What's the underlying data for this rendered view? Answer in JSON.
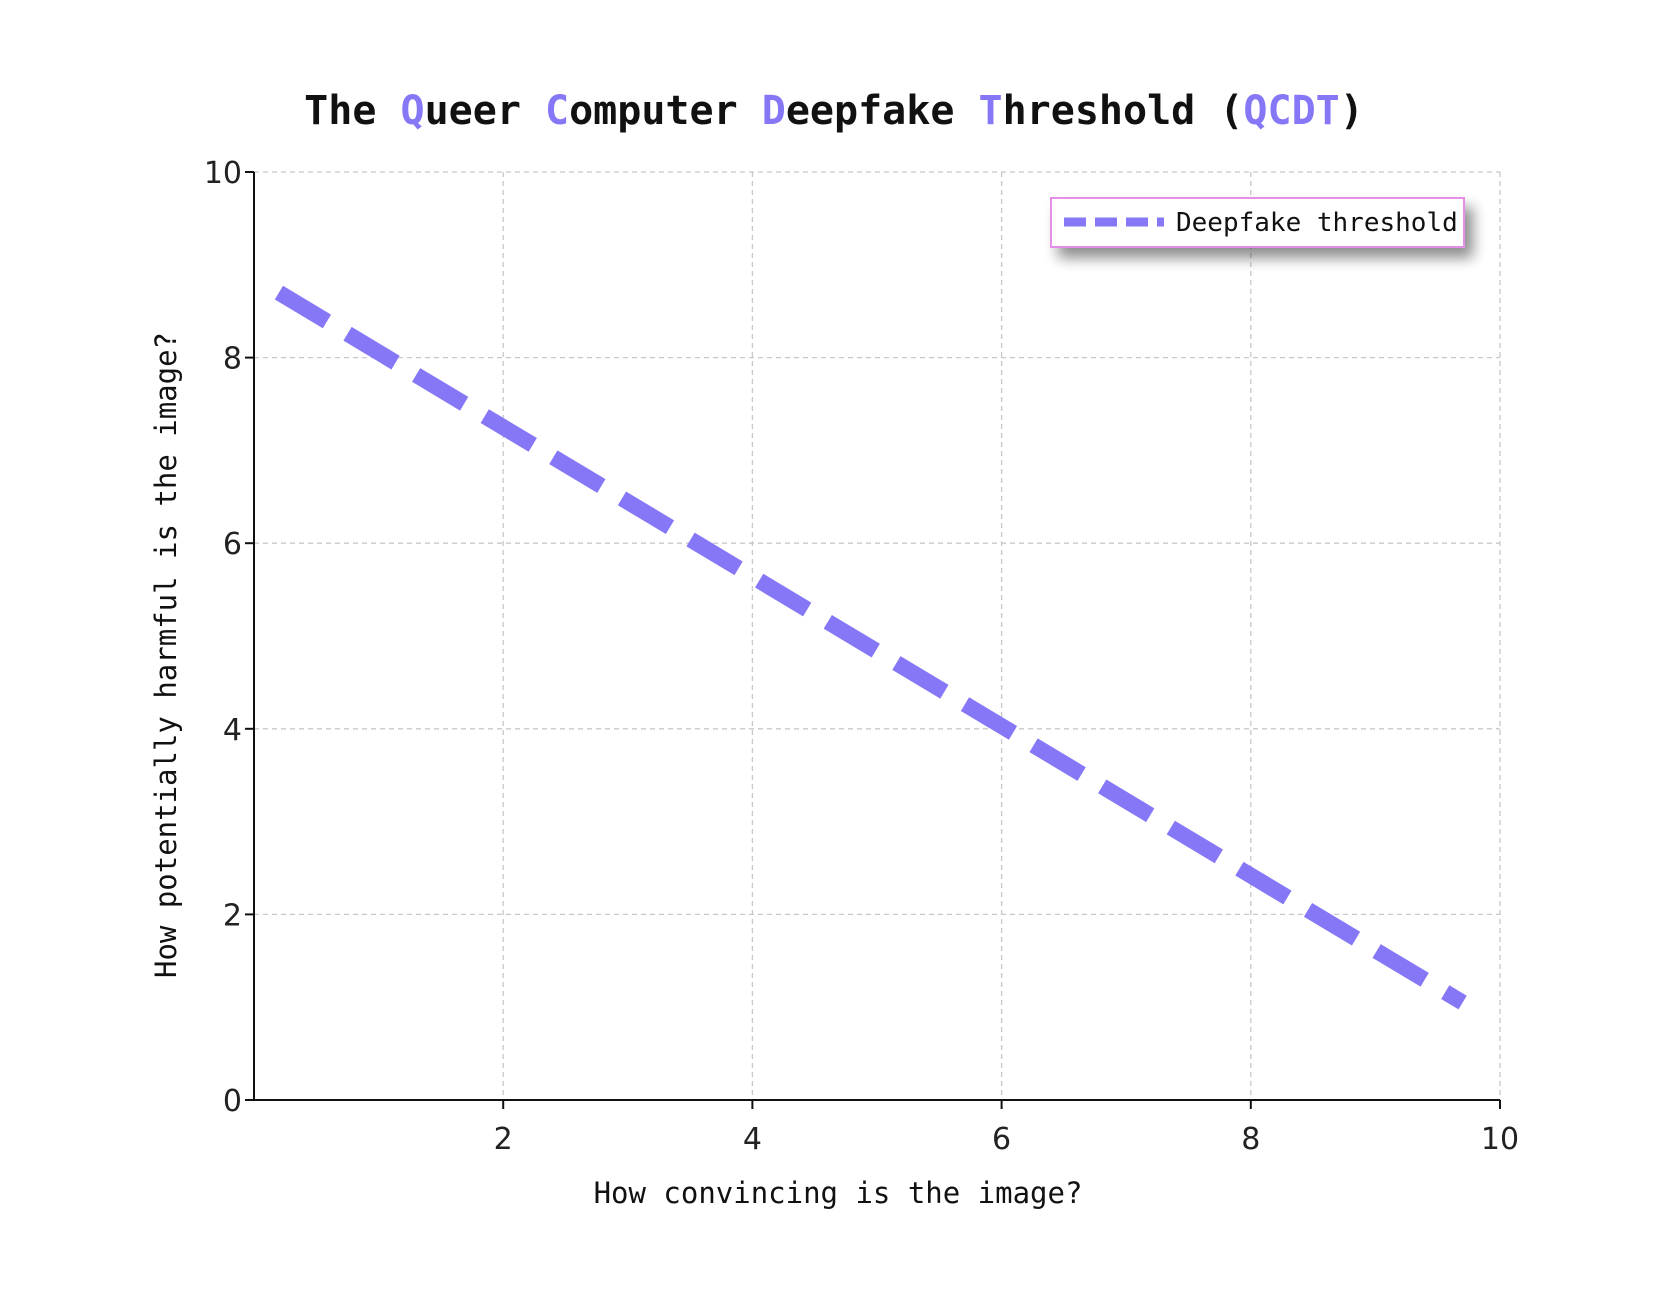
{
  "chart_data": {
    "type": "line",
    "title_segments": [
      {
        "text": "The ",
        "accent": false
      },
      {
        "text": "Q",
        "accent": true
      },
      {
        "text": "ueer ",
        "accent": false
      },
      {
        "text": "C",
        "accent": true
      },
      {
        "text": "omputer ",
        "accent": false
      },
      {
        "text": "D",
        "accent": true
      },
      {
        "text": "eepfake ",
        "accent": false
      },
      {
        "text": "T",
        "accent": true
      },
      {
        "text": "hreshold (",
        "accent": false
      },
      {
        "text": "QCDT",
        "accent": true
      },
      {
        "text": ")",
        "accent": false
      }
    ],
    "xlabel": "How convincing is the image?",
    "ylabel": "How potentially harmful is the image?",
    "xlim": [
      0,
      10
    ],
    "ylim": [
      0,
      10
    ],
    "x_ticks": [
      2,
      4,
      6,
      8,
      10
    ],
    "y_ticks": [
      0,
      2,
      4,
      6,
      8,
      10
    ],
    "grid": true,
    "legend_position": "top-right",
    "series": [
      {
        "name": "Deepfake threshold",
        "style": "dashed",
        "x": [
          0.2,
          9.7
        ],
        "y": [
          8.7,
          1.05
        ]
      }
    ],
    "colors": {
      "accent": "#8577f5",
      "line": "#8577f5",
      "legend_border": "#e58fe8",
      "text": "#111111",
      "grid": "#c8c8c8"
    }
  }
}
